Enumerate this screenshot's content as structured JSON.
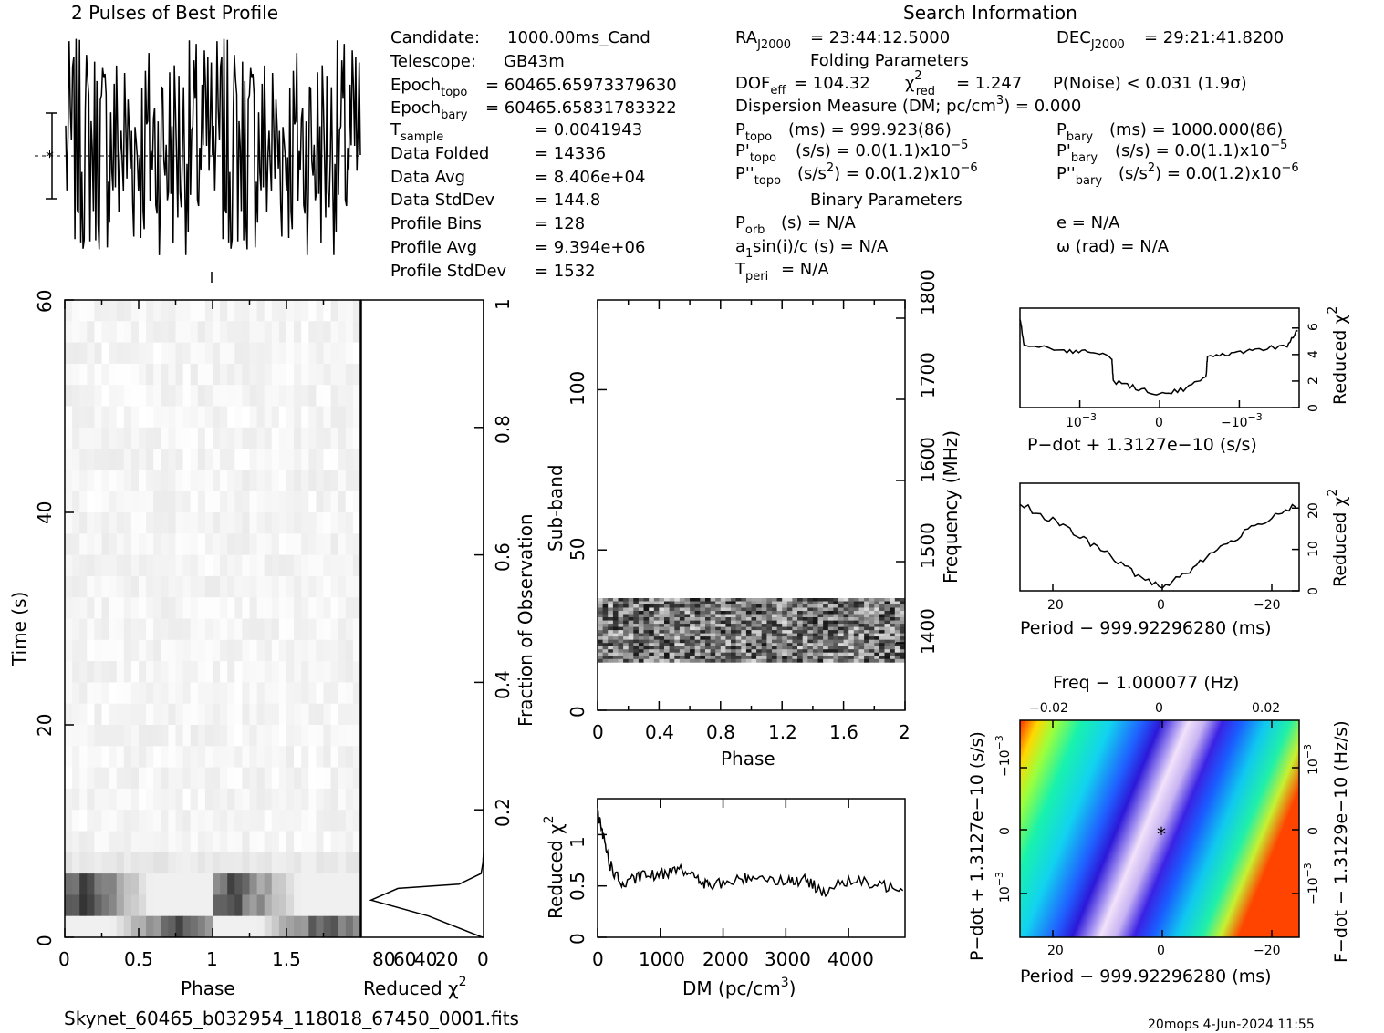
{
  "profile": {
    "title": "2 Pulses of Best Profile"
  },
  "info": {
    "search_title": "Search Information",
    "candidate_label": "Candidate:",
    "candidate": "1000.00ms_Cand",
    "telescope_label": "Telescope:",
    "telescope": "GB43m",
    "epoch_topo_label": "Epoch",
    "epoch_topo_sub": "topo",
    "epoch_topo": "= 60465.65973379630",
    "epoch_bary_label": "Epoch",
    "epoch_bary_sub": "bary",
    "epoch_bary": "= 60465.65831783322",
    "tsample_label": "T",
    "tsample_sub": "sample",
    "tsample": "=   0.0041943",
    "data_folded_label": "Data Folded",
    "data_folded": "=   14336",
    "data_avg_label": "Data Avg",
    "data_avg": "=   8.406e+04",
    "data_stddev_label": "Data StdDev",
    "data_stddev": "=   144.8",
    "profile_bins_label": "Profile Bins",
    "profile_bins": "=   128",
    "profile_avg_label": "Profile Avg",
    "profile_avg": "=   9.394e+06",
    "profile_stddev_label": "Profile StdDev",
    "profile_stddev": "=   1532",
    "ra_label": "RA",
    "ra_sub": "J2000",
    "ra": "= 23:44:12.5000",
    "dec_label": "DEC",
    "dec_sub": "J2000",
    "dec": "= 29:21:41.8200",
    "folding_title": "Folding Parameters",
    "dof_label": "DOF",
    "dof_sub": "eff",
    "dof": "= 104.32",
    "chi_label": "χ",
    "chi_sup": "2",
    "chi_sub": "red",
    "chi": "= 1.247",
    "pnoise": "P(Noise) < 0.031   (1.9σ)",
    "dm_line": "Dispersion Measure (DM; pc/cm",
    "dm_sup": "3",
    "dm_val": ") = 0.000",
    "ptopo_label": "P",
    "ptopo_sub": "topo",
    "ptopo": "(ms)  =   999.923(86)",
    "pbary_label": "P",
    "pbary_sub": "bary",
    "pbary": "(ms)  =   1000.000(86)",
    "pdtopo_label": "P'",
    "pdtopo_sub": "topo",
    "pdtopo": "(s/s) = 0.0(1.1)x10",
    "pdtopo_exp": "−5",
    "pdbary_label": "P'",
    "pdbary_sub": "bary",
    "pdbary": "(s/s) = 0.0(1.1)x10",
    "pdbary_exp": "−5",
    "pddtopo_label": "P''",
    "pddtopo_sub": "topo",
    "pddtopo": "(s/s",
    "pddtopo_sup": "2",
    "pddtopo_val": ") = 0.0(1.2)x10",
    "pddtopo_exp": "−6",
    "pddbary_label": "P''",
    "pddbary_sub": "bary",
    "pddbary": "(s/s",
    "pddbary_sup": "2",
    "pddbary_val": ") = 0.0(1.2)x10",
    "pddbary_exp": "−6",
    "binary_title": "Binary Parameters",
    "porb_label": "P",
    "porb_sub": "orb",
    "porb": "(s) = N/A",
    "asini_label": "a",
    "asini_sub": "1",
    "asini": "sin(i)/c (s) = N/A",
    "tperi_label": "T",
    "tperi_sub": "peri",
    "tperi": "= N/A",
    "e": "e = N/A",
    "omega": "ω (rad) = N/A"
  },
  "footer": {
    "filename": "Skynet_60465_b032954_118018_67450_0001.fits",
    "stamp": "20mops   4-Jun-2024 11:55"
  },
  "chart_data": [
    {
      "type": "line",
      "name": "profile",
      "title": "2 Pulses of Best Profile",
      "xlim": [
        0,
        2
      ],
      "note_points": 256
    },
    {
      "type": "heatmap",
      "name": "time-phase",
      "xlabel": "Phase",
      "ylabel": "Time (s)",
      "xlim": [
        0,
        2
      ],
      "ylim": [
        0,
        60
      ],
      "x_ticks": [
        "0",
        "0.5",
        "1",
        "1.5"
      ],
      "y_ticks": [
        "0",
        "20",
        "40",
        "60"
      ],
      "right_ylabel": "Fraction of Observation",
      "right_ticks": [
        "0.2",
        "0.4",
        "0.6",
        "0.8",
        "1"
      ]
    },
    {
      "type": "line",
      "name": "time-chi2",
      "xlabel": "Reduced χ",
      "xlabel_sup": "2",
      "x_ticks": [
        "80",
        "60",
        "40",
        "20",
        "0"
      ],
      "xlim": [
        100,
        0
      ],
      "ylim": [
        0,
        60
      ],
      "points": [
        [
          0,
          0
        ],
        [
          1,
          0
        ],
        [
          45,
          2
        ],
        [
          92,
          3.5
        ],
        [
          70,
          4.6
        ],
        [
          20,
          5
        ],
        [
          2,
          6
        ],
        [
          0.5,
          7
        ],
        [
          0,
          8
        ],
        [
          0,
          60
        ]
      ]
    },
    {
      "type": "heatmap",
      "name": "subband-phase",
      "xlabel": "Phase",
      "ylabel": "Sub-band",
      "xlim": [
        0,
        2
      ],
      "ylim": [
        0,
        128
      ],
      "x_ticks": [
        "0",
        "0.4",
        "0.8",
        "1.2",
        "1.6",
        "2"
      ],
      "y_ticks": [
        "0",
        "50",
        "100"
      ],
      "right_ylabel": "Frequency (MHz)",
      "right_ticks": [
        "1400",
        "1500",
        "1600",
        "1700",
        "1800"
      ],
      "band": [
        15,
        35
      ]
    },
    {
      "type": "line",
      "name": "dm-chi2",
      "xlabel": "DM (pc/cm",
      "xlabel_sup": "3",
      "xlabel_end": ")",
      "ylabel": "Reduced χ",
      "ylabel_sup": "2",
      "xlim": [
        0,
        4900
      ],
      "ylim": [
        0,
        1.35
      ],
      "x_ticks": [
        "0",
        "1000",
        "2000",
        "3000",
        "4000"
      ],
      "y_ticks": [
        "0",
        "0.5",
        "1"
      ],
      "points": [
        [
          0,
          1.2
        ],
        [
          100,
          0.95
        ],
        [
          200,
          0.7
        ],
        [
          400,
          0.5
        ],
        [
          700,
          0.6
        ],
        [
          1000,
          0.6
        ],
        [
          1300,
          0.7
        ],
        [
          1600,
          0.55
        ],
        [
          1800,
          0.5
        ],
        [
          2200,
          0.55
        ],
        [
          2500,
          0.6
        ],
        [
          3000,
          0.55
        ],
        [
          3300,
          0.55
        ],
        [
          3600,
          0.45
        ],
        [
          4000,
          0.55
        ],
        [
          4500,
          0.5
        ],
        [
          4900,
          0.5
        ]
      ]
    },
    {
      "type": "line",
      "name": "pdot-chi2",
      "xlabel": "P−dot + 1.3127e−10 (s/s)",
      "ylabel": "Reduced χ",
      "ylabel_sup": "2",
      "y_ticks": [
        "0",
        "2",
        "4",
        "6"
      ],
      "x_ticks": [
        "10",
        "0",
        "−10"
      ],
      "x_tick_exp": "−3",
      "xlim": [
        -1.75,
        1.75
      ],
      "ylim": [
        0,
        7.5
      ],
      "points": [
        [
          -1.75,
          6.8
        ],
        [
          -1.7,
          4.8
        ],
        [
          -1.2,
          4.3
        ],
        [
          -0.9,
          4.2
        ],
        [
          -0.6,
          3.8
        ],
        [
          -0.58,
          2.0
        ],
        [
          -0.3,
          1.5
        ],
        [
          0,
          1.0
        ],
        [
          0.3,
          1.4
        ],
        [
          0.58,
          2.2
        ],
        [
          0.6,
          3.8
        ],
        [
          0.9,
          4.0
        ],
        [
          1.2,
          4.3
        ],
        [
          1.6,
          4.7
        ],
        [
          1.75,
          6.0
        ]
      ]
    },
    {
      "type": "line",
      "name": "period-chi2",
      "xlabel": "Period − 999.92296280 (ms)",
      "ylabel": "Reduced χ",
      "ylabel_sup": "2",
      "y_ticks": [
        "0",
        "10",
        "20"
      ],
      "x_ticks": [
        "20",
        "0",
        "−20"
      ],
      "xlim": [
        26,
        -25
      ],
      "ylim": [
        0,
        26
      ],
      "points": [
        [
          26,
          21
        ],
        [
          20,
          17
        ],
        [
          15,
          13
        ],
        [
          10,
          9
        ],
        [
          5,
          4
        ],
        [
          0,
          1
        ],
        [
          -5,
          5
        ],
        [
          -10,
          10
        ],
        [
          -15,
          14
        ],
        [
          -20,
          18
        ],
        [
          -25,
          21
        ]
      ]
    },
    {
      "type": "heatmap",
      "name": "p-pdot",
      "top_xlabel": "Freq − 1.000077 (Hz)",
      "top_ticks": [
        "−0.02",
        "0",
        "0.02"
      ],
      "xlabel": "Period − 999.92296280 (ms)",
      "x_ticks": [
        "20",
        "0",
        "−20"
      ],
      "ylabel": "P−dot + 1.3127e−10 (s/s)",
      "y_ticks": [
        "10",
        "0",
        "−10"
      ],
      "y_tick_exp": "−3",
      "right_ylabel": "F−dot − 1.3129e−10 (Hz/s)",
      "right_ticks": [
        "10",
        "0",
        "−10"
      ],
      "right_tick_exp": "−3",
      "xlim": [
        26,
        -25
      ],
      "ylim": [
        2,
        -2
      ]
    }
  ]
}
